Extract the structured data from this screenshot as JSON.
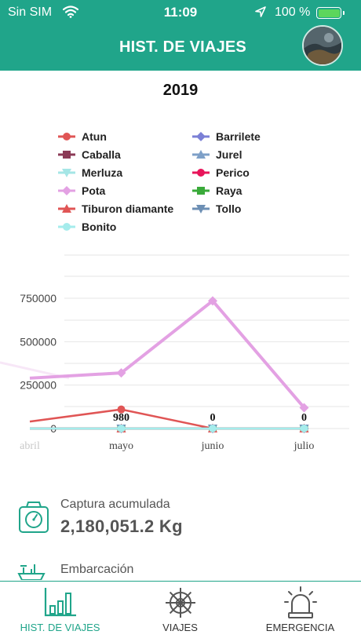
{
  "status_bar": {
    "carrier": "Sin SIM",
    "time": "11:09",
    "battery": "100 %",
    "battery_color": "#5cd65c"
  },
  "header": {
    "title": "HIST. DE VIAJES",
    "avatar_icon": "profile-photo",
    "bg_color": "#20a58a"
  },
  "chart_data": {
    "type": "line",
    "title": "2019",
    "categories": [
      "abril",
      "mayo",
      "junio",
      "julio"
    ],
    "y_ticks": [
      "0",
      "250000",
      "500000",
      "750000"
    ],
    "ylim": [
      0,
      1000000
    ],
    "legend_position": "top",
    "series": [
      {
        "name": "Atun",
        "color": "#e05555",
        "marker": "circle",
        "values": [
          40000,
          110000,
          0,
          null
        ]
      },
      {
        "name": "Barrilete",
        "color": "#7b80d6",
        "marker": "diamond",
        "values": [
          0,
          0,
          0,
          0
        ]
      },
      {
        "name": "Caballa",
        "color": "#8b3a56",
        "marker": "square",
        "values": [
          0,
          0,
          0,
          0
        ]
      },
      {
        "name": "Jurel",
        "color": "#7ea0c8",
        "marker": "triangle",
        "values": [
          0,
          0,
          0,
          0
        ]
      },
      {
        "name": "Merluza",
        "color": "#a5e6e6",
        "marker": "triangle-down",
        "values": [
          0,
          0,
          0,
          0
        ]
      },
      {
        "name": "Perico",
        "color": "#e8155a",
        "marker": "circle",
        "values": [
          0,
          0,
          0,
          0
        ]
      },
      {
        "name": "Pota",
        "color": "#e3a1e3",
        "marker": "diamond",
        "values": [
          290000,
          320000,
          735000,
          120000
        ]
      },
      {
        "name": "Raya",
        "color": "#3aaa3a",
        "marker": "square",
        "values": [
          0,
          0,
          0,
          0
        ]
      },
      {
        "name": "Tiburon diamante",
        "color": "#e05555",
        "marker": "triangle",
        "values": [
          0,
          0,
          0,
          0
        ]
      },
      {
        "name": "Tollo",
        "color": "#6d8fb4",
        "marker": "triangle-down",
        "values": [
          0,
          0,
          0,
          0
        ]
      },
      {
        "name": "Bonito",
        "color": "#a5ecec",
        "marker": "circle",
        "values": [
          0,
          0,
          0,
          0
        ]
      }
    ],
    "data_labels": [
      {
        "category": "mayo",
        "text": "980"
      },
      {
        "category": "junio",
        "text": "0"
      },
      {
        "category": "julio",
        "text": "0"
      }
    ]
  },
  "stats": {
    "catch_label": "Captura acumulada",
    "catch_value": "2,180,051.2 Kg",
    "catch_icon": "scale-icon",
    "boat_label": "Embarcación",
    "boat_icon": "boat-icon"
  },
  "tabbar": {
    "tabs": [
      {
        "label": "HIST. DE VIAJES",
        "icon": "bar-chart-icon",
        "active": true
      },
      {
        "label": "VIAJES",
        "icon": "ship-wheel-icon",
        "active": false
      },
      {
        "label": "EMERGENCIA",
        "icon": "alarm-light-icon",
        "active": false
      }
    ],
    "active_color": "#20a58a",
    "inactive_color": "#555555"
  }
}
